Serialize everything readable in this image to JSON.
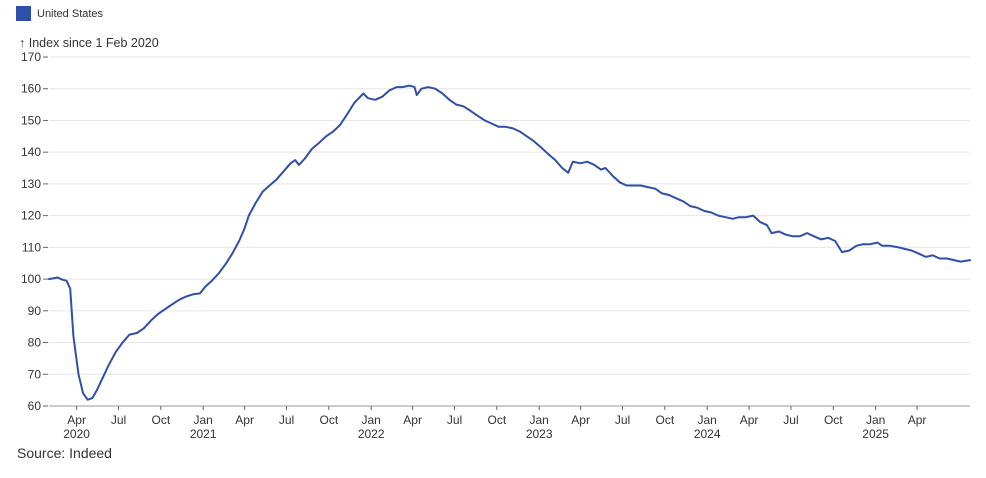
{
  "legend": {
    "label": "United States",
    "color": "#2f4fa8"
  },
  "source": "Source: Indeed",
  "chart_data": {
    "type": "line",
    "title": "",
    "ylabel": "Index since 1 Feb 2020",
    "ylabel_arrow": "↑",
    "ylim": [
      60,
      170
    ],
    "yticks": [
      60,
      70,
      80,
      90,
      100,
      110,
      120,
      130,
      140,
      150,
      160,
      170
    ],
    "grid": true,
    "line_color": "#2f4fa8",
    "x_range": [
      "2020-02-01",
      "2025-07-25"
    ],
    "xticks": [
      {
        "date": "2020-04-01",
        "label": "Apr",
        "year": "2020"
      },
      {
        "date": "2020-07-01",
        "label": "Jul",
        "year": ""
      },
      {
        "date": "2020-10-01",
        "label": "Oct",
        "year": ""
      },
      {
        "date": "2021-01-01",
        "label": "Jan",
        "year": "2021"
      },
      {
        "date": "2021-04-01",
        "label": "Apr",
        "year": ""
      },
      {
        "date": "2021-07-01",
        "label": "Jul",
        "year": ""
      },
      {
        "date": "2021-10-01",
        "label": "Oct",
        "year": ""
      },
      {
        "date": "2022-01-01",
        "label": "Jan",
        "year": "2022"
      },
      {
        "date": "2022-04-01",
        "label": "Apr",
        "year": ""
      },
      {
        "date": "2022-07-01",
        "label": "Jul",
        "year": ""
      },
      {
        "date": "2022-10-01",
        "label": "Oct",
        "year": ""
      },
      {
        "date": "2023-01-01",
        "label": "Jan",
        "year": "2023"
      },
      {
        "date": "2023-04-01",
        "label": "Apr",
        "year": ""
      },
      {
        "date": "2023-07-01",
        "label": "Jul",
        "year": ""
      },
      {
        "date": "2023-10-01",
        "label": "Oct",
        "year": ""
      },
      {
        "date": "2024-01-01",
        "label": "Jan",
        "year": "2024"
      },
      {
        "date": "2024-04-01",
        "label": "Apr",
        "year": ""
      },
      {
        "date": "2024-07-01",
        "label": "Jul",
        "year": ""
      },
      {
        "date": "2024-10-01",
        "label": "Oct",
        "year": ""
      },
      {
        "date": "2025-01-01",
        "label": "Jan",
        "year": "2025"
      },
      {
        "date": "2025-04-01",
        "label": "Apr",
        "year": ""
      }
    ],
    "series": [
      {
        "name": "United States",
        "points": [
          [
            "2020-02-01",
            100
          ],
          [
            "2020-02-20",
            100.5
          ],
          [
            "2020-03-01",
            99.8
          ],
          [
            "2020-03-10",
            99.5
          ],
          [
            "2020-03-18",
            97
          ],
          [
            "2020-03-25",
            82
          ],
          [
            "2020-04-05",
            70
          ],
          [
            "2020-04-15",
            64
          ],
          [
            "2020-04-25",
            62
          ],
          [
            "2020-05-05",
            62.5
          ],
          [
            "2020-05-15",
            65
          ],
          [
            "2020-05-28",
            69
          ],
          [
            "2020-06-10",
            73
          ],
          [
            "2020-06-25",
            77
          ],
          [
            "2020-07-10",
            80
          ],
          [
            "2020-07-25",
            82.5
          ],
          [
            "2020-08-10",
            83
          ],
          [
            "2020-08-25",
            84.5
          ],
          [
            "2020-09-10",
            87
          ],
          [
            "2020-09-25",
            89
          ],
          [
            "2020-10-10",
            90.5
          ],
          [
            "2020-10-25",
            92
          ],
          [
            "2020-11-10",
            93.5
          ],
          [
            "2020-11-25",
            94.5
          ],
          [
            "2020-12-10",
            95.2
          ],
          [
            "2020-12-25",
            95.5
          ],
          [
            "2021-01-05",
            97.5
          ],
          [
            "2021-01-20",
            99.5
          ],
          [
            "2021-02-05",
            102
          ],
          [
            "2021-02-20",
            105
          ],
          [
            "2021-03-05",
            108
          ],
          [
            "2021-03-20",
            112
          ],
          [
            "2021-04-01",
            116
          ],
          [
            "2021-04-10",
            120
          ],
          [
            "2021-04-25",
            124
          ],
          [
            "2021-05-10",
            127.5
          ],
          [
            "2021-05-25",
            129.5
          ],
          [
            "2021-06-10",
            131.5
          ],
          [
            "2021-06-25",
            134
          ],
          [
            "2021-07-10",
            136.5
          ],
          [
            "2021-07-20",
            137.5
          ],
          [
            "2021-07-28",
            136
          ],
          [
            "2021-08-10",
            138
          ],
          [
            "2021-08-25",
            141
          ],
          [
            "2021-09-10",
            143
          ],
          [
            "2021-09-25",
            145
          ],
          [
            "2021-10-10",
            146.5
          ],
          [
            "2021-10-25",
            148.5
          ],
          [
            "2021-11-10",
            152
          ],
          [
            "2021-11-25",
            155.5
          ],
          [
            "2021-12-05",
            157
          ],
          [
            "2021-12-15",
            158.5
          ],
          [
            "2021-12-25",
            157
          ],
          [
            "2022-01-10",
            156.5
          ],
          [
            "2022-01-25",
            157.5
          ],
          [
            "2022-02-10",
            159.5
          ],
          [
            "2022-02-25",
            160.5
          ],
          [
            "2022-03-10",
            160.5
          ],
          [
            "2022-03-25",
            161
          ],
          [
            "2022-04-05",
            160.5
          ],
          [
            "2022-04-10",
            158
          ],
          [
            "2022-04-20",
            160
          ],
          [
            "2022-05-05",
            160.5
          ],
          [
            "2022-05-20",
            160
          ],
          [
            "2022-06-05",
            158.5
          ],
          [
            "2022-06-20",
            156.5
          ],
          [
            "2022-07-05",
            155
          ],
          [
            "2022-07-20",
            154.5
          ],
          [
            "2022-08-05",
            153
          ],
          [
            "2022-08-20",
            151.5
          ],
          [
            "2022-09-05",
            150
          ],
          [
            "2022-09-20",
            149
          ],
          [
            "2022-10-05",
            148
          ],
          [
            "2022-10-20",
            148
          ],
          [
            "2022-11-05",
            147.5
          ],
          [
            "2022-11-20",
            146.5
          ],
          [
            "2022-12-05",
            145
          ],
          [
            "2022-12-20",
            143.5
          ],
          [
            "2023-01-05",
            141.5
          ],
          [
            "2023-01-20",
            139.5
          ],
          [
            "2023-02-05",
            137.5
          ],
          [
            "2023-02-20",
            135
          ],
          [
            "2023-03-05",
            133.5
          ],
          [
            "2023-03-15",
            137
          ],
          [
            "2023-04-01",
            136.5
          ],
          [
            "2023-04-15",
            137
          ],
          [
            "2023-05-01",
            136
          ],
          [
            "2023-05-15",
            134.5
          ],
          [
            "2023-05-25",
            135
          ],
          [
            "2023-06-10",
            132.5
          ],
          [
            "2023-06-25",
            130.5
          ],
          [
            "2023-07-10",
            129.5
          ],
          [
            "2023-07-25",
            129.5
          ],
          [
            "2023-08-10",
            129.5
          ],
          [
            "2023-08-25",
            129
          ],
          [
            "2023-09-10",
            128.5
          ],
          [
            "2023-09-25",
            127
          ],
          [
            "2023-10-10",
            126.5
          ],
          [
            "2023-10-25",
            125.5
          ],
          [
            "2023-11-10",
            124.5
          ],
          [
            "2023-11-25",
            123
          ],
          [
            "2023-12-10",
            122.5
          ],
          [
            "2023-12-25",
            121.5
          ],
          [
            "2024-01-10",
            121
          ],
          [
            "2024-01-25",
            120
          ],
          [
            "2024-02-10",
            119.5
          ],
          [
            "2024-02-25",
            119
          ],
          [
            "2024-03-10",
            119.5
          ],
          [
            "2024-03-25",
            119.5
          ],
          [
            "2024-04-10",
            120
          ],
          [
            "2024-04-25",
            118
          ],
          [
            "2024-05-10",
            117
          ],
          [
            "2024-05-20",
            114.5
          ],
          [
            "2024-06-05",
            115
          ],
          [
            "2024-06-20",
            114
          ],
          [
            "2024-07-05",
            113.5
          ],
          [
            "2024-07-20",
            113.5
          ],
          [
            "2024-08-05",
            114.5
          ],
          [
            "2024-08-20",
            113.5
          ],
          [
            "2024-09-05",
            112.5
          ],
          [
            "2024-09-20",
            113
          ],
          [
            "2024-10-05",
            112
          ],
          [
            "2024-10-20",
            108.5
          ],
          [
            "2024-11-05",
            109
          ],
          [
            "2024-11-20",
            110.5
          ],
          [
            "2024-12-05",
            111
          ],
          [
            "2024-12-20",
            111
          ],
          [
            "2025-01-05",
            111.5
          ],
          [
            "2025-01-15",
            110.5
          ],
          [
            "2025-02-01",
            110.5
          ],
          [
            "2025-02-20",
            110
          ],
          [
            "2025-03-05",
            109.5
          ],
          [
            "2025-03-20",
            109
          ],
          [
            "2025-04-05",
            108
          ],
          [
            "2025-04-20",
            107
          ],
          [
            "2025-05-05",
            107.5
          ],
          [
            "2025-05-20",
            106.5
          ],
          [
            "2025-06-05",
            106.5
          ],
          [
            "2025-06-20",
            106
          ],
          [
            "2025-07-05",
            105.5
          ],
          [
            "2025-07-25",
            106
          ]
        ]
      }
    ]
  }
}
